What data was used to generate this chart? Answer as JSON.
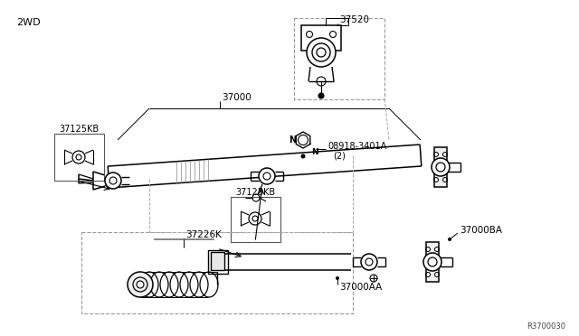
{
  "bg_color": "#ffffff",
  "line_color": "#000000",
  "fig_width": 6.4,
  "fig_height": 3.72,
  "dpi": 100,
  "label_2wd": "2WD",
  "label_ref": "R3700030",
  "label_37520": "37520",
  "label_37000": "37000",
  "label_37125KB": "37125KB",
  "label_N": "N",
  "label_08918": "08918-3401A",
  "label_2": "(2)",
  "label_37226K": "37226K",
  "label_37000AA": "37000AA",
  "label_37000BA": "37000BA"
}
